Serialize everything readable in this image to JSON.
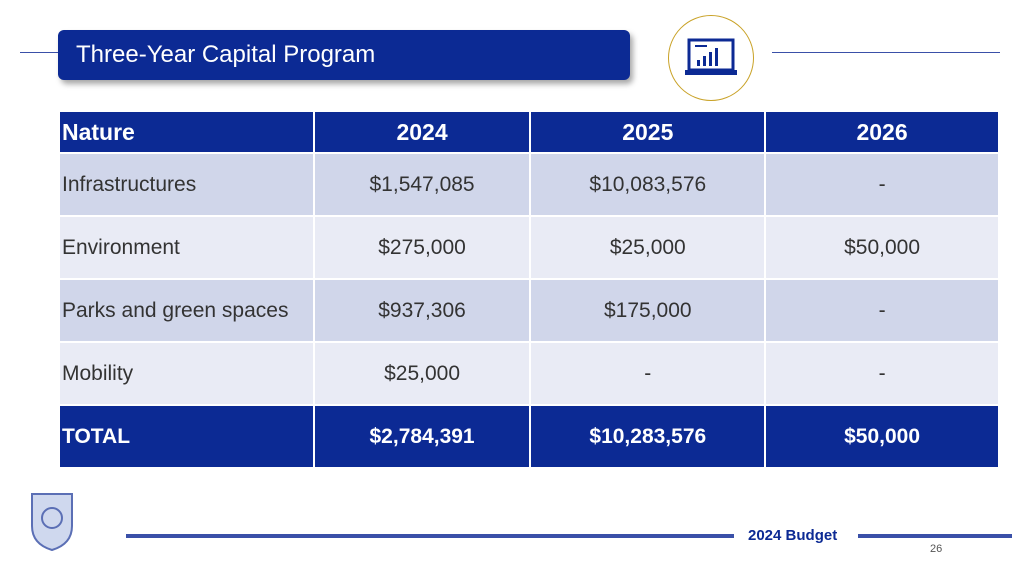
{
  "header": {
    "title": "Three-Year Capital Program"
  },
  "table": {
    "columns": [
      "Nature",
      "2024",
      "2025",
      "2026"
    ],
    "rows": [
      [
        "Infrastructures",
        "$1,547,085",
        "$10,083,576",
        "-"
      ],
      [
        "Environment",
        "$275,000",
        "$25,000",
        "$50,000"
      ],
      [
        "Parks and green spaces",
        "$937,306",
        "$175,000",
        "-"
      ],
      [
        "Mobility",
        "$25,000",
        "-",
        "-"
      ]
    ],
    "total": [
      "TOTAL",
      "$2,784,391",
      "$10,283,576",
      "$50,000"
    ]
  },
  "footer": {
    "label": "2024 Budget",
    "page": "26"
  }
}
